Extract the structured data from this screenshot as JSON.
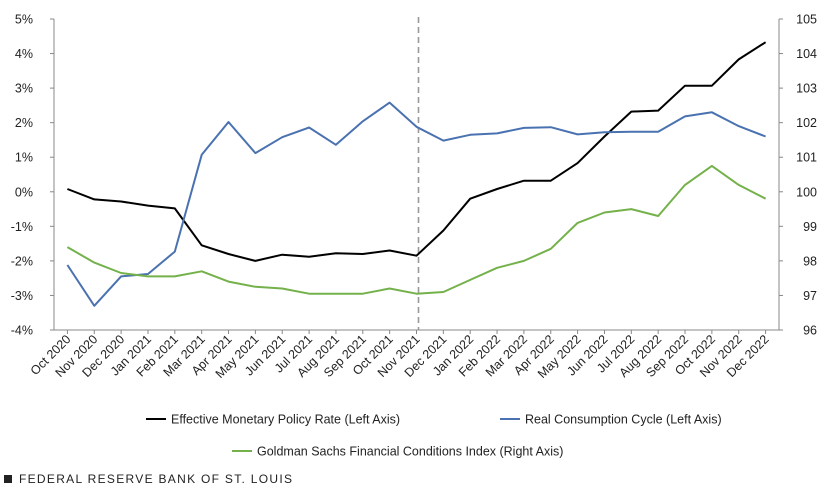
{
  "chart_data": {
    "type": "line",
    "categories": [
      "Oct 2020",
      "Nov 2020",
      "Dec 2020",
      "Jan 2021",
      "Feb 2021",
      "Mar 2021",
      "Apr 2021",
      "May 2021",
      "Jun 2021",
      "Jul 2021",
      "Aug 2021",
      "Sep 2021",
      "Oct 2021",
      "Nov 2021",
      "Dec 2021",
      "Jan 2022",
      "Feb 2022",
      "Mar 2022",
      "Apr 2022",
      "May 2022",
      "Jun 2022",
      "Jul 2022",
      "Aug 2022",
      "Sep 2022",
      "Oct 2022",
      "Nov 2022",
      "Dec 2022"
    ],
    "left_axis": {
      "ticks": [
        "5%",
        "4%",
        "3%",
        "2%",
        "1%",
        "0%",
        "-1%",
        "-2%",
        "-3%",
        "-4%"
      ],
      "ylim": [
        -4,
        5
      ]
    },
    "right_axis": {
      "ticks": [
        "105",
        "104",
        "103",
        "102",
        "101",
        "100",
        "99",
        "98",
        "97",
        "96"
      ],
      "ylim": [
        96,
        105
      ]
    },
    "vertical_marker_category": "Nov 2021",
    "series": [
      {
        "name": "Effective Monetary Policy Rate (Left Axis)",
        "axis": "left",
        "color": "#000000",
        "values": [
          0.08,
          -0.22,
          -0.28,
          -0.4,
          -0.48,
          -1.55,
          -1.8,
          -2.0,
          -1.82,
          -1.88,
          -1.78,
          -1.8,
          -1.7,
          -1.85,
          -1.12,
          -0.2,
          0.08,
          0.32,
          0.32,
          0.83,
          1.6,
          2.32,
          2.35,
          3.07,
          3.07,
          3.83,
          4.33
        ]
      },
      {
        "name": "Real Consumption Cycle (Left Axis)",
        "axis": "left",
        "color": "#4a72b0",
        "values": [
          -2.12,
          -3.3,
          -2.45,
          -2.38,
          -1.73,
          1.07,
          2.02,
          1.12,
          1.58,
          1.86,
          1.36,
          2.04,
          2.58,
          1.88,
          1.48,
          1.65,
          1.69,
          1.85,
          1.87,
          1.66,
          1.72,
          1.74,
          1.74,
          2.18,
          2.3,
          1.9,
          1.6
        ]
      },
      {
        "name": "Goldman Sachs Financial Conditions Index (Right Axis)",
        "axis": "right",
        "color": "#74b14b",
        "values": [
          98.4,
          97.95,
          97.65,
          97.55,
          97.55,
          97.7,
          97.4,
          97.25,
          97.2,
          97.05,
          97.05,
          97.05,
          97.2,
          97.05,
          97.1,
          97.45,
          97.8,
          98.0,
          98.35,
          99.1,
          99.4,
          99.5,
          99.3,
          100.2,
          100.75,
          100.2,
          99.8
        ]
      }
    ]
  },
  "footer": {
    "label": "FEDERAL RESERVE BANK OF ST. LOUIS"
  }
}
